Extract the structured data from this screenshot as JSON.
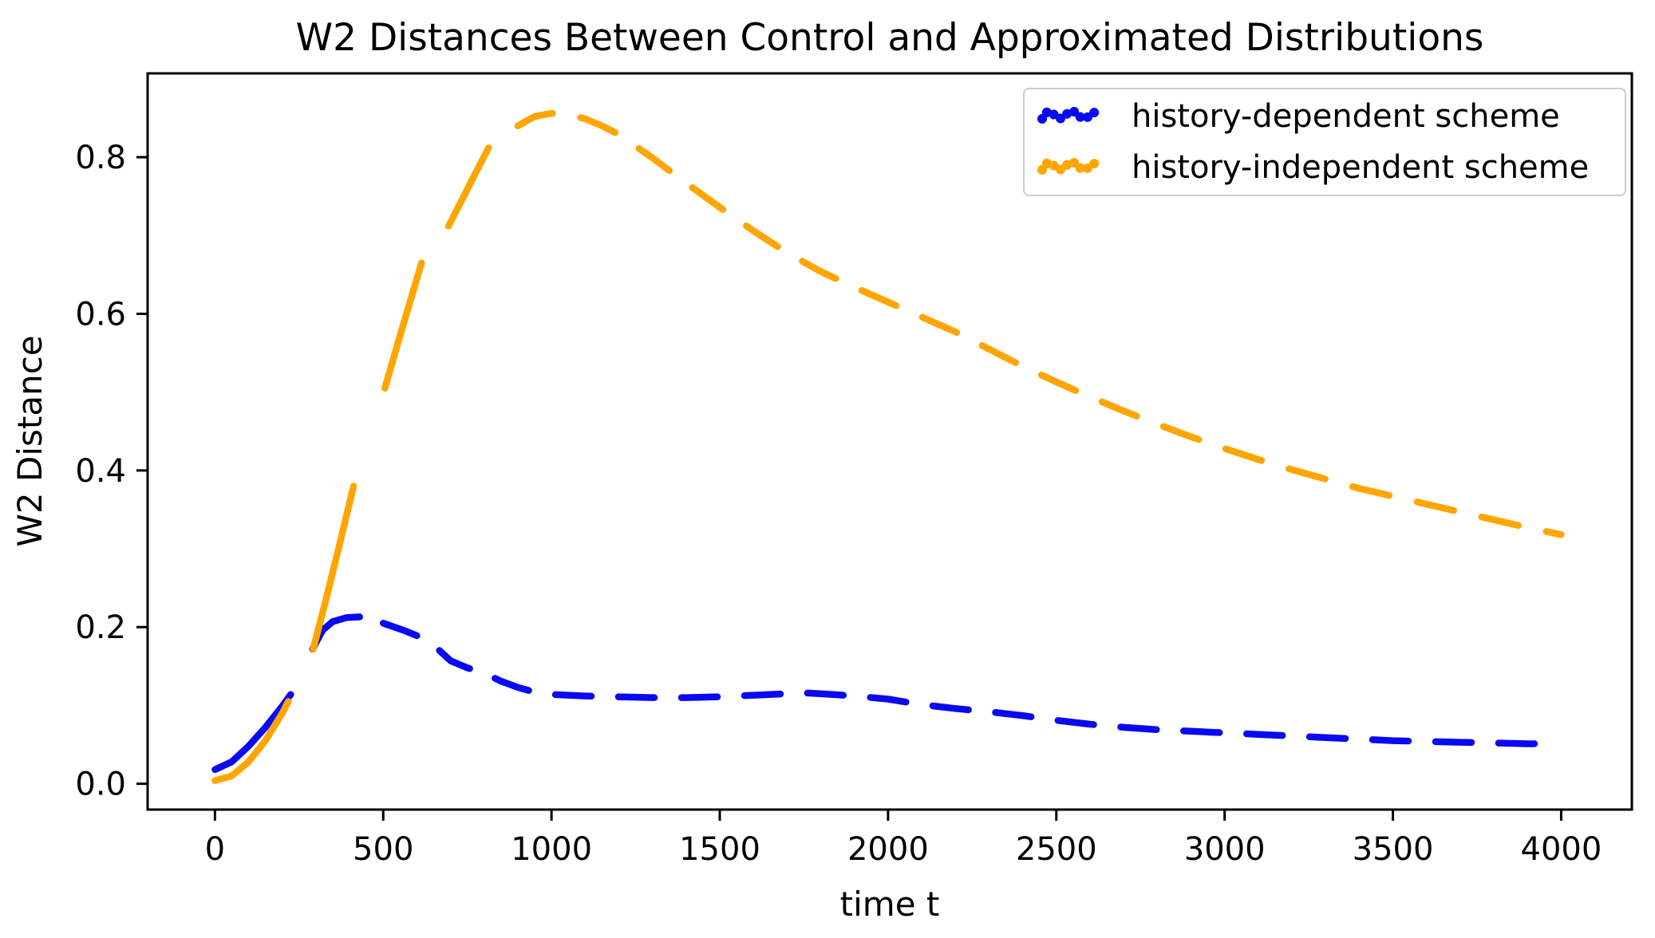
{
  "chart_data": {
    "type": "line",
    "title": "W2 Distances Between Control and Approximated Distributions",
    "xlabel": "time t",
    "ylabel": "W2 Distance",
    "xlim": [
      -200,
      4210
    ],
    "ylim": [
      -0.033,
      0.907
    ],
    "x_ticks": [
      0,
      500,
      1000,
      1500,
      2000,
      2500,
      3000,
      3500,
      4000
    ],
    "y_ticks": [
      0.0,
      0.2,
      0.4,
      0.6,
      0.8
    ],
    "y_tick_labels": [
      "0.0",
      "0.2",
      "0.4",
      "0.6",
      "0.8"
    ],
    "grid": false,
    "legend_position": "upper right",
    "axis_color": "#000000",
    "series": [
      {
        "name": "history-dependent scheme",
        "color": "#0909f2",
        "linestyle": "dashed",
        "points": [
          [
            0,
            0.018
          ],
          [
            50,
            0.028
          ],
          [
            100,
            0.048
          ],
          [
            150,
            0.072
          ],
          [
            200,
            0.099
          ],
          [
            225,
            0.114
          ],
          [
            290,
            0.172
          ],
          [
            320,
            0.196
          ],
          [
            350,
            0.207
          ],
          [
            390,
            0.212
          ],
          [
            430,
            0.213
          ],
          [
            500,
            0.205
          ],
          [
            560,
            0.196
          ],
          [
            600,
            0.189
          ],
          [
            650,
            0.177
          ],
          [
            700,
            0.157
          ],
          [
            750,
            0.148
          ],
          [
            800,
            0.141
          ],
          [
            850,
            0.131
          ],
          [
            900,
            0.123
          ],
          [
            950,
            0.117
          ],
          [
            1000,
            0.114
          ],
          [
            1100,
            0.112
          ],
          [
            1200,
            0.111
          ],
          [
            1300,
            0.11
          ],
          [
            1400,
            0.11
          ],
          [
            1500,
            0.111
          ],
          [
            1600,
            0.113
          ],
          [
            1700,
            0.115
          ],
          [
            1750,
            0.116
          ],
          [
            1800,
            0.115
          ],
          [
            1900,
            0.112
          ],
          [
            2000,
            0.108
          ],
          [
            2100,
            0.101
          ],
          [
            2200,
            0.096
          ],
          [
            2300,
            0.092
          ],
          [
            2400,
            0.087
          ],
          [
            2500,
            0.081
          ],
          [
            2600,
            0.076
          ],
          [
            2700,
            0.072
          ],
          [
            2800,
            0.069
          ],
          [
            2900,
            0.067
          ],
          [
            3000,
            0.065
          ],
          [
            3100,
            0.063
          ],
          [
            3200,
            0.061
          ],
          [
            3300,
            0.059
          ],
          [
            3400,
            0.057
          ],
          [
            3500,
            0.055
          ],
          [
            3600,
            0.054
          ],
          [
            3700,
            0.053
          ],
          [
            3800,
            0.052
          ],
          [
            3900,
            0.051
          ],
          [
            4000,
            0.051
          ]
        ],
        "draw_segments": [
          {
            "from": 0,
            "to": 225,
            "style": "solid"
          },
          {
            "from": 290,
            "to": 430,
            "style": "solid"
          },
          {
            "from": 500,
            "to": 4000,
            "style": "dashed"
          }
        ]
      },
      {
        "name": "history-independent scheme",
        "color": "#ffa500",
        "linestyle": "dashed",
        "points": [
          [
            0,
            0.004
          ],
          [
            50,
            0.01
          ],
          [
            100,
            0.028
          ],
          [
            150,
            0.055
          ],
          [
            200,
            0.09
          ],
          [
            218,
            0.105
          ],
          [
            292,
            0.172
          ],
          [
            330,
            0.235
          ],
          [
            370,
            0.305
          ],
          [
            412,
            0.38
          ],
          [
            505,
            0.505
          ],
          [
            550,
            0.572
          ],
          [
            614,
            0.665
          ],
          [
            694,
            0.712
          ],
          [
            730,
            0.742
          ],
          [
            770,
            0.776
          ],
          [
            813,
            0.812
          ],
          [
            900,
            0.84
          ],
          [
            950,
            0.852
          ],
          [
            1000,
            0.856
          ],
          [
            1050,
            0.855
          ],
          [
            1100,
            0.849
          ],
          [
            1150,
            0.84
          ],
          [
            1200,
            0.829
          ],
          [
            1300,
            0.799
          ],
          [
            1400,
            0.767
          ],
          [
            1500,
            0.736
          ],
          [
            1600,
            0.706
          ],
          [
            1700,
            0.678
          ],
          [
            1800,
            0.654
          ],
          [
            1900,
            0.634
          ],
          [
            2000,
            0.615
          ],
          [
            2100,
            0.596
          ],
          [
            2200,
            0.577
          ],
          [
            2300,
            0.555
          ],
          [
            2400,
            0.533
          ],
          [
            2500,
            0.513
          ],
          [
            2600,
            0.494
          ],
          [
            2700,
            0.476
          ],
          [
            2800,
            0.459
          ],
          [
            2900,
            0.443
          ],
          [
            3000,
            0.428
          ],
          [
            3100,
            0.414
          ],
          [
            3200,
            0.401
          ],
          [
            3300,
            0.389
          ],
          [
            3400,
            0.377
          ],
          [
            3500,
            0.367
          ],
          [
            3600,
            0.357
          ],
          [
            3700,
            0.347
          ],
          [
            3800,
            0.337
          ],
          [
            3900,
            0.327
          ],
          [
            4000,
            0.318
          ]
        ],
        "draw_segments": [
          {
            "from": 0,
            "to": 218,
            "style": "solid"
          },
          {
            "from": 292,
            "to": 412,
            "style": "solid"
          },
          {
            "from": 505,
            "to": 614,
            "style": "solid"
          },
          {
            "from": 694,
            "to": 813,
            "style": "solid"
          },
          {
            "from": 900,
            "to": 4000,
            "style": "dashed"
          }
        ]
      }
    ]
  }
}
